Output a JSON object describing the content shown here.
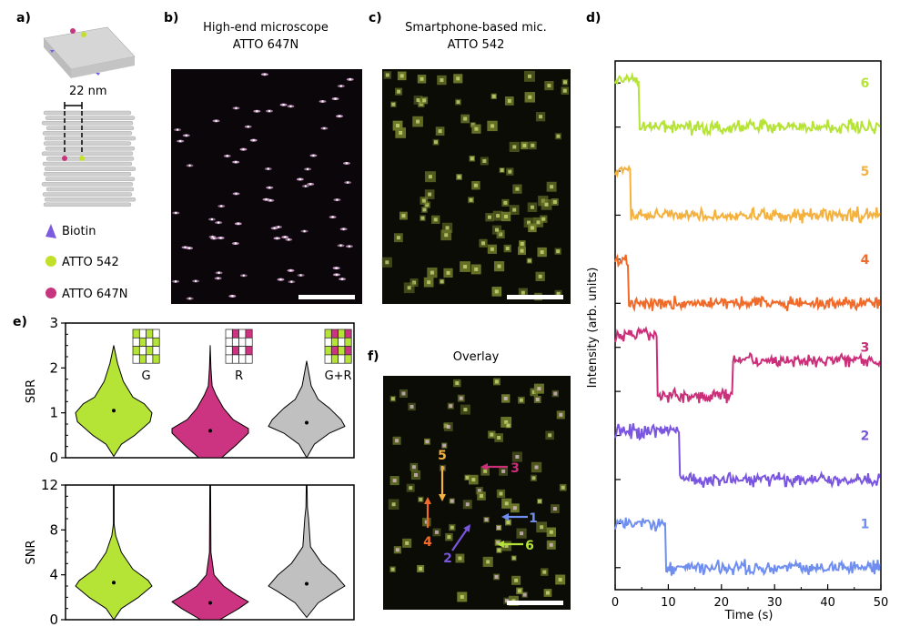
{
  "panels": {
    "a": {
      "label": "a)",
      "distance": "22 nm",
      "legend": [
        {
          "name": "Biotin",
          "color": "#7b5ce0"
        },
        {
          "name": "ATTO 542",
          "color": "#c2e02a"
        },
        {
          "name": "ATTO 647N",
          "color": "#c8357f"
        }
      ]
    },
    "b": {
      "label": "b)",
      "title1": "High-end microscope",
      "title2": "ATTO 647N"
    },
    "c": {
      "label": "c)",
      "title1": "Smartphone-based mic.",
      "title2": "ATTO 542"
    },
    "d": {
      "label": "d)"
    },
    "e": {
      "label": "e)"
    },
    "f": {
      "label": "f)",
      "title": "Overlay",
      "annotations": [
        {
          "id": "1",
          "color": "#6f8ef0"
        },
        {
          "id": "2",
          "color": "#7a55e0"
        },
        {
          "id": "3",
          "color": "#cc2f7a"
        },
        {
          "id": "4",
          "color": "#f06a2a"
        },
        {
          "id": "5",
          "color": "#f5b13d"
        },
        {
          "id": "6",
          "color": "#b5e336"
        }
      ]
    }
  },
  "chart_data": [
    {
      "type": "line",
      "panel": "d",
      "xlabel": "Time (s)",
      "ylabel": "Intensity (arb. units)",
      "xlim": [
        0,
        50
      ],
      "xticks": [
        "0",
        "10",
        "20",
        "30",
        "40",
        "50"
      ],
      "ylim": [
        0,
        12
      ],
      "series": [
        {
          "name": "1",
          "color": "#6f8ef0",
          "baseline": 0.5,
          "steps": [
            [
              0,
              1.5
            ],
            [
              9.5,
              0.5
            ]
          ]
        },
        {
          "name": "2",
          "color": "#7a55e0",
          "baseline": 2.5,
          "steps": [
            [
              0,
              3.6
            ],
            [
              12,
              2.5
            ]
          ]
        },
        {
          "name": "3",
          "color": "#cc2f7a",
          "baseline": 4.5,
          "steps": [
            [
              0,
              5.8
            ],
            [
              8,
              4.4
            ],
            [
              22,
              5.2
            ]
          ]
        },
        {
          "name": "4",
          "color": "#f06a2a",
          "baseline": 6.5,
          "steps": [
            [
              0,
              7.5
            ],
            [
              2.5,
              6.5
            ]
          ]
        },
        {
          "name": "5",
          "color": "#f5b13d",
          "baseline": 8.5,
          "steps": [
            [
              0,
              9.5
            ],
            [
              3,
              8.5
            ]
          ]
        },
        {
          "name": "6",
          "color": "#b5e336",
          "baseline": 10.5,
          "steps": [
            [
              0,
              11.6
            ],
            [
              4.5,
              10.5
            ]
          ]
        }
      ]
    },
    {
      "type": "violin",
      "panel": "e-top",
      "ylabel": "SBR",
      "ylim": [
        0,
        3
      ],
      "yticks": [
        "0",
        "1",
        "2",
        "3"
      ],
      "categories": [
        "G",
        "R",
        "G+R"
      ],
      "colors": [
        "#b5e336",
        "#cc3380",
        "#c0c0c0"
      ],
      "medians": [
        1.05,
        0.6,
        0.78
      ],
      "density": [
        [
          [
            0.03,
            0
          ],
          [
            0.3,
            0.2
          ],
          [
            0.5,
            0.55
          ],
          [
            0.8,
            0.95
          ],
          [
            1.0,
            1.0
          ],
          [
            1.2,
            0.8
          ],
          [
            1.35,
            0.5
          ],
          [
            1.7,
            0.25
          ],
          [
            2.1,
            0.1
          ],
          [
            2.5,
            0
          ]
        ],
        [
          [
            0,
            0.3
          ],
          [
            0.3,
            0.7
          ],
          [
            0.55,
            1.0
          ],
          [
            0.65,
            1.0
          ],
          [
            0.85,
            0.6
          ],
          [
            1.1,
            0.35
          ],
          [
            1.4,
            0.15
          ],
          [
            1.6,
            0.05
          ],
          [
            2.0,
            0.02
          ],
          [
            2.5,
            0
          ]
        ],
        [
          [
            0,
            0
          ],
          [
            0.3,
            0.2
          ],
          [
            0.55,
            0.6
          ],
          [
            0.7,
            1.0
          ],
          [
            0.85,
            0.9
          ],
          [
            1.1,
            0.6
          ],
          [
            1.3,
            0.3
          ],
          [
            1.6,
            0.12
          ],
          [
            2.15,
            0
          ]
        ]
      ]
    },
    {
      "type": "violin",
      "panel": "e-bottom",
      "ylabel": "SNR",
      "ylim": [
        0,
        12
      ],
      "yticks": [
        "0",
        "4",
        "8",
        "12"
      ],
      "categories": [
        "G",
        "R",
        "G+R"
      ],
      "colors": [
        "#b5e336",
        "#cc3380",
        "#c0c0c0"
      ],
      "medians": [
        3.3,
        1.5,
        3.2
      ],
      "density": [
        [
          [
            0,
            0
          ],
          [
            1,
            0.2
          ],
          [
            2,
            0.65
          ],
          [
            3,
            1.0
          ],
          [
            3.5,
            0.9
          ],
          [
            4.5,
            0.5
          ],
          [
            6,
            0.2
          ],
          [
            7.5,
            0.05
          ],
          [
            8.5,
            0.01
          ],
          [
            12,
            0.01
          ]
        ],
        [
          [
            0,
            0.25
          ],
          [
            1,
            0.75
          ],
          [
            1.6,
            1.0
          ],
          [
            2.2,
            0.7
          ],
          [
            3,
            0.35
          ],
          [
            4,
            0.1
          ],
          [
            6,
            0.02
          ],
          [
            12,
            0.01
          ]
        ],
        [
          [
            0.2,
            0
          ],
          [
            1.5,
            0.3
          ],
          [
            2.5,
            0.75
          ],
          [
            3,
            1.0
          ],
          [
            4,
            0.75
          ],
          [
            5,
            0.4
          ],
          [
            6.5,
            0.1
          ],
          [
            9,
            0.05
          ],
          [
            10,
            0.02
          ],
          [
            12,
            0.01
          ]
        ]
      ]
    }
  ]
}
